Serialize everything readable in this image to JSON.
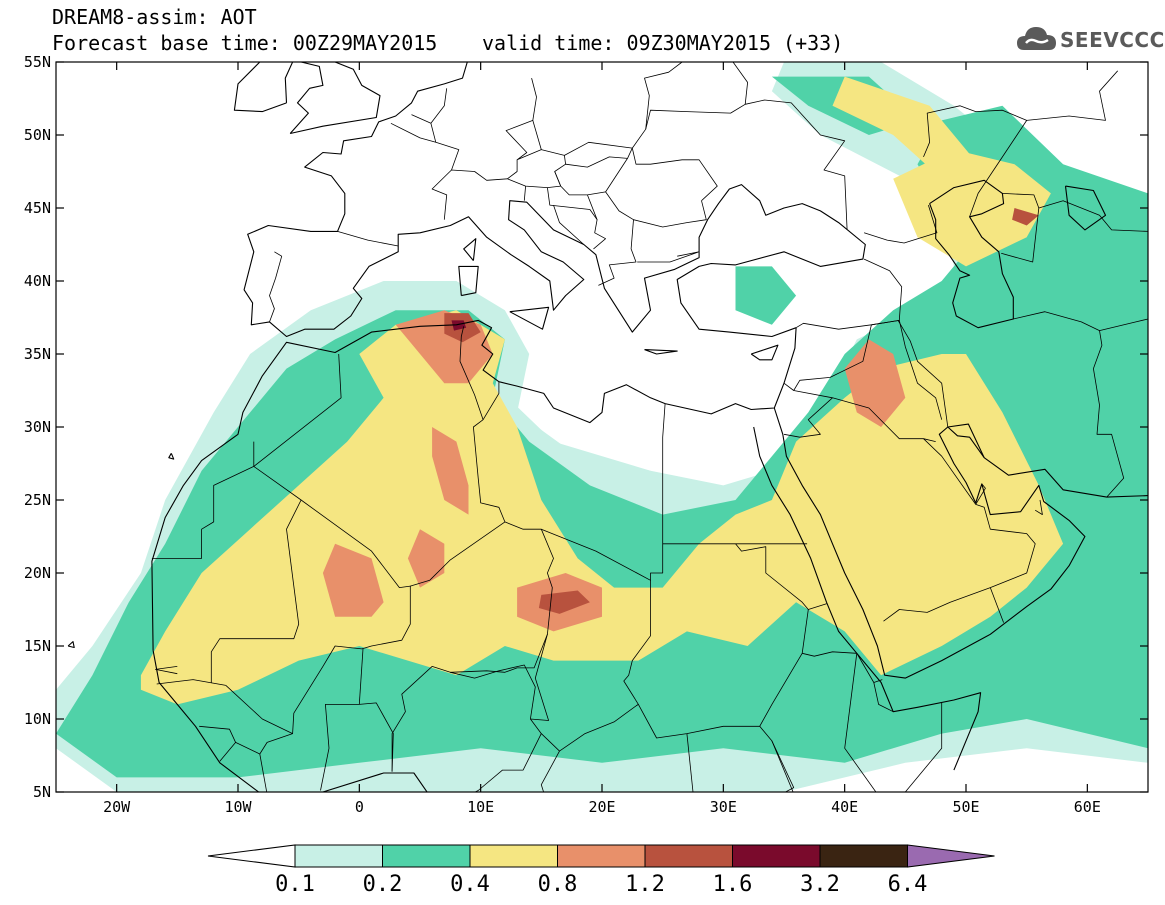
{
  "header": {
    "title_line1": "DREAM8-assim: AOT",
    "title_line2": "Forecast base time: 00Z29MAY2015",
    "valid_time": "valid time: 09Z30MAY2015 (+33)"
  },
  "logo": {
    "text": "SEEVCCC",
    "icon": "cloud-logo-icon",
    "color": "#5a5a5a"
  },
  "map": {
    "lon_range": [
      -25,
      65
    ],
    "lat_range": [
      5,
      55
    ],
    "lon_ticks": [
      {
        "value": -20,
        "label": "20W"
      },
      {
        "value": -10,
        "label": "10W"
      },
      {
        "value": 0,
        "label": "0"
      },
      {
        "value": 10,
        "label": "10E"
      },
      {
        "value": 20,
        "label": "20E"
      },
      {
        "value": 30,
        "label": "30E"
      },
      {
        "value": 40,
        "label": "40E"
      },
      {
        "value": 50,
        "label": "50E"
      },
      {
        "value": 60,
        "label": "60E"
      }
    ],
    "lat_ticks": [
      {
        "value": 55,
        "label": "55N"
      },
      {
        "value": 50,
        "label": "50N"
      },
      {
        "value": 45,
        "label": "45N"
      },
      {
        "value": 40,
        "label": "40N"
      },
      {
        "value": 35,
        "label": "35N"
      },
      {
        "value": 30,
        "label": "30N"
      },
      {
        "value": 25,
        "label": "25N"
      },
      {
        "value": 20,
        "label": "20N"
      },
      {
        "value": 15,
        "label": "15N"
      },
      {
        "value": 10,
        "label": "10N"
      },
      {
        "value": 5,
        "label": "5N"
      }
    ]
  },
  "legend": {
    "labels": [
      "0.1",
      "0.2",
      "0.4",
      "0.8",
      "1.2",
      "1.6",
      "3.2",
      "6.4"
    ],
    "colors": [
      "#c8f0e6",
      "#50d2a8",
      "#f5e682",
      "#e8906a",
      "#b8523e",
      "#7a0a2c",
      "#3a2412",
      "#9a6ab0"
    ]
  },
  "colors": {
    "c01": "#c8f0e6",
    "c02": "#50d2a8",
    "c04": "#f5e682",
    "c08": "#e8906a",
    "c12": "#b8523e",
    "c16": "#7a0a2c",
    "c32": "#3a2412",
    "c64": "#9a6ab0"
  },
  "plume_levels": [
    "0.1",
    "0.2",
    "0.4",
    "0.8",
    "1.2",
    "1.6"
  ]
}
